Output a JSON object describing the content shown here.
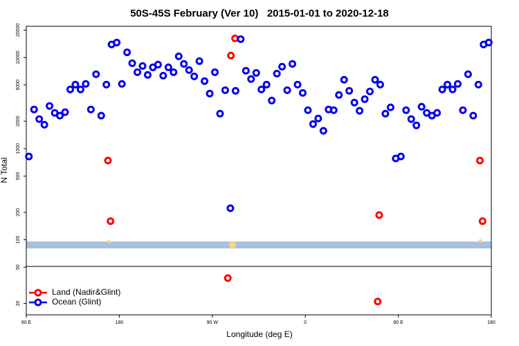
{
  "chart_data": {
    "type": "scatter",
    "title": "50S-45S February (Ver 10)   2015-01-01 to 2020-12-18",
    "x_label": "Longitude (deg E)",
    "y_label": "N Total",
    "xlim": [
      90,
      540
    ],
    "xticks": [
      {
        "value": 90,
        "label": "90 E"
      },
      {
        "value": 180,
        "label": "180"
      },
      {
        "value": 270,
        "label": "90 W"
      },
      {
        "value": 360,
        "label": "0"
      },
      {
        "value": 450,
        "label": "90 E"
      },
      {
        "value": 540,
        "label": "180"
      }
    ],
    "ylim": [
      15,
      22000
    ],
    "y_scale": "log",
    "yticks": [
      20,
      50,
      100,
      200,
      500,
      1000,
      2000,
      5000,
      10000,
      20000
    ],
    "legend": "bottom-left",
    "series": [
      {
        "name": "Land (Nadir&Glint)",
        "color": "#ff0000",
        "x": [
          169,
          171.5,
          285,
          288,
          292,
          430,
          431.5,
          529,
          531.5
        ],
        "values": [
          740,
          160,
          38,
          10500,
          16200,
          21,
          187,
          740,
          160
        ]
      },
      {
        "name": "Ocean (Glint)",
        "color": "#0000ee",
        "x": [
          92.5,
          97.5,
          102.5,
          107.5,
          112.5,
          117.5,
          122.5,
          127.5,
          132.5,
          137.5,
          142.5,
          147.5,
          152.5,
          157.5,
          162.5,
          167.5,
          172.5,
          177.5,
          182.5,
          187.5,
          192.5,
          197.5,
          202.5,
          207.5,
          212.5,
          217.5,
          222.5,
          227.5,
          232.5,
          237.5,
          242.5,
          247.5,
          252.5,
          257.5,
          262.5,
          267.5,
          272.5,
          277.5,
          282.5,
          287.5,
          292.5,
          297.5,
          302.5,
          307.5,
          312.5,
          317.5,
          322.5,
          327.5,
          332.5,
          337.5,
          342.5,
          347.5,
          352.5,
          357.5,
          362.5,
          367.5,
          372.5,
          377.5,
          382.5,
          387.5,
          392.5,
          397.5,
          402.5,
          407.5,
          412.5,
          417.5,
          422.5,
          427.5,
          432.5,
          437.5,
          442.5,
          447.5,
          452.5,
          457.5,
          462.5,
          467.5,
          472.5,
          477.5,
          482.5,
          487.5,
          492.5,
          497.5,
          502.5,
          507.5,
          512.5,
          517.5,
          522.5,
          527.5,
          532.5,
          537.5
        ],
        "values": [
          820,
          2690,
          2110,
          1830,
          2940,
          2470,
          2300,
          2510,
          4460,
          5040,
          4460,
          5130,
          2690,
          6550,
          2300,
          5040,
          13900,
          14600,
          5130,
          11400,
          8660,
          6900,
          8070,
          6440,
          7800,
          8360,
          6320,
          7800,
          6900,
          10300,
          8510,
          7280,
          6210,
          9120,
          5500,
          4020,
          6900,
          2420,
          4380,
          222,
          4310,
          15900,
          7150,
          5800,
          6780,
          4460,
          5040,
          3370,
          6660,
          7930,
          4380,
          8510,
          5040,
          4090,
          2640,
          1860,
          2140,
          1570,
          2690,
          2640,
          3880,
          5700,
          4310,
          3200,
          2600,
          3490,
          4240,
          5700,
          5040,
          2420,
          2840,
          780,
          820,
          2640,
          2110,
          1800,
          2880,
          2470,
          2300,
          2470,
          4460,
          5040,
          4460,
          5130,
          2640,
          6550,
          2300,
          5040,
          13900,
          14600
        ]
      }
    ]
  }
}
